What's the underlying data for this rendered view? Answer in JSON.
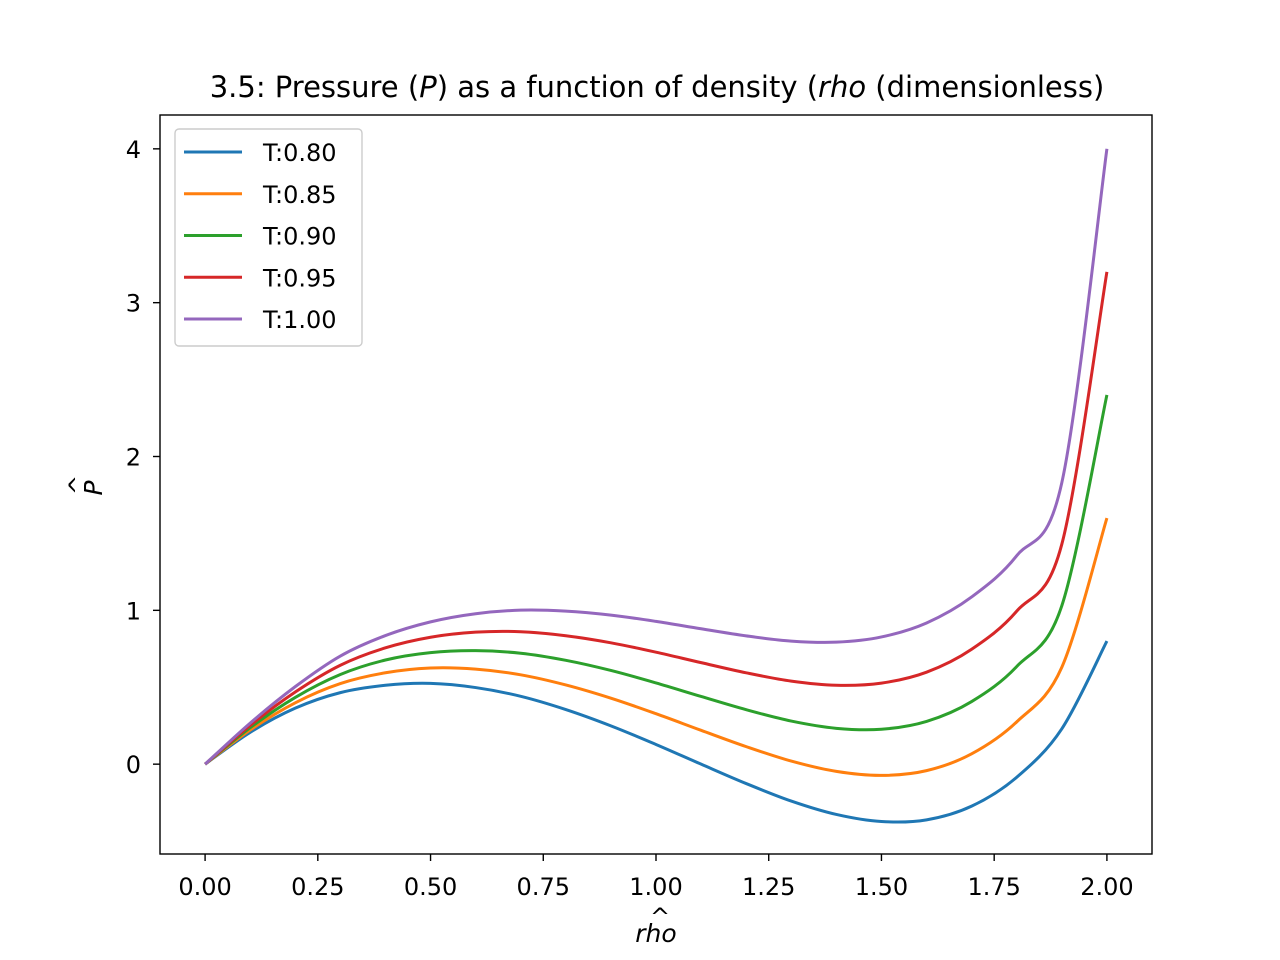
{
  "chart_data": {
    "type": "line",
    "title_parts": [
      "3.5: Pressure (",
      "P",
      ") as a function of density (",
      "rho",
      " (dimensionless)"
    ],
    "xlabel_text": "rho",
    "ylabel_text": "P",
    "hat_glyph": "^",
    "xlim": [
      -0.1,
      2.1
    ],
    "ylim": [
      -0.584,
      4.22
    ],
    "x_ticks": [
      0.0,
      0.25,
      0.5,
      0.75,
      1.0,
      1.25,
      1.5,
      1.75,
      2.0
    ],
    "x_tick_labels": [
      "0.00",
      "0.25",
      "0.50",
      "0.75",
      "1.00",
      "1.25",
      "1.50",
      "1.75",
      "2.00"
    ],
    "y_ticks": [
      0,
      1,
      2,
      3,
      4
    ],
    "y_tick_labels": [
      "0",
      "1",
      "2",
      "3",
      "4"
    ],
    "grid": false,
    "legend_position": "upper-left",
    "x": [
      0.0,
      0.1,
      0.2,
      0.3,
      0.4,
      0.5,
      0.6,
      0.7,
      0.8,
      0.9,
      1.0,
      1.1,
      1.2,
      1.3,
      1.4,
      1.5,
      1.6,
      1.7,
      1.8,
      1.9,
      2.0
    ],
    "series": [
      {
        "name": "T:0.80",
        "color": "#1f77b4",
        "values": [
          0.0,
          0.207,
          0.364,
          0.465,
          0.513,
          0.525,
          0.498,
          0.441,
          0.355,
          0.249,
          0.128,
          0.0,
          -0.126,
          -0.24,
          -0.327,
          -0.373,
          -0.362,
          -0.273,
          -0.085,
          0.23,
          0.8
        ]
      },
      {
        "name": "T:0.85",
        "color": "#ff7f0e",
        "values": [
          0.0,
          0.222,
          0.399,
          0.524,
          0.594,
          0.625,
          0.618,
          0.581,
          0.515,
          0.429,
          0.328,
          0.22,
          0.114,
          0.02,
          -0.047,
          -0.073,
          -0.042,
          0.067,
          0.275,
          0.63,
          1.6
        ]
      },
      {
        "name": "T:0.90",
        "color": "#2ca02c",
        "values": [
          0.0,
          0.237,
          0.434,
          0.583,
          0.677,
          0.725,
          0.738,
          0.721,
          0.675,
          0.609,
          0.528,
          0.44,
          0.354,
          0.28,
          0.233,
          0.227,
          0.278,
          0.407,
          0.635,
          1.03,
          2.4
        ]
      },
      {
        "name": "T:0.95",
        "color": "#d62728",
        "values": [
          0.0,
          0.252,
          0.469,
          0.643,
          0.756,
          0.825,
          0.858,
          0.861,
          0.835,
          0.789,
          0.728,
          0.66,
          0.594,
          0.54,
          0.513,
          0.527,
          0.598,
          0.747,
          0.995,
          1.43,
          3.2
        ]
      },
      {
        "name": "T:1.00",
        "color": "#9467bd",
        "values": [
          0.0,
          0.267,
          0.504,
          0.703,
          0.836,
          0.925,
          0.978,
          1.001,
          0.995,
          0.969,
          0.928,
          0.88,
          0.834,
          0.8,
          0.793,
          0.827,
          0.918,
          1.087,
          1.355,
          1.83,
          4.0
        ]
      }
    ]
  }
}
